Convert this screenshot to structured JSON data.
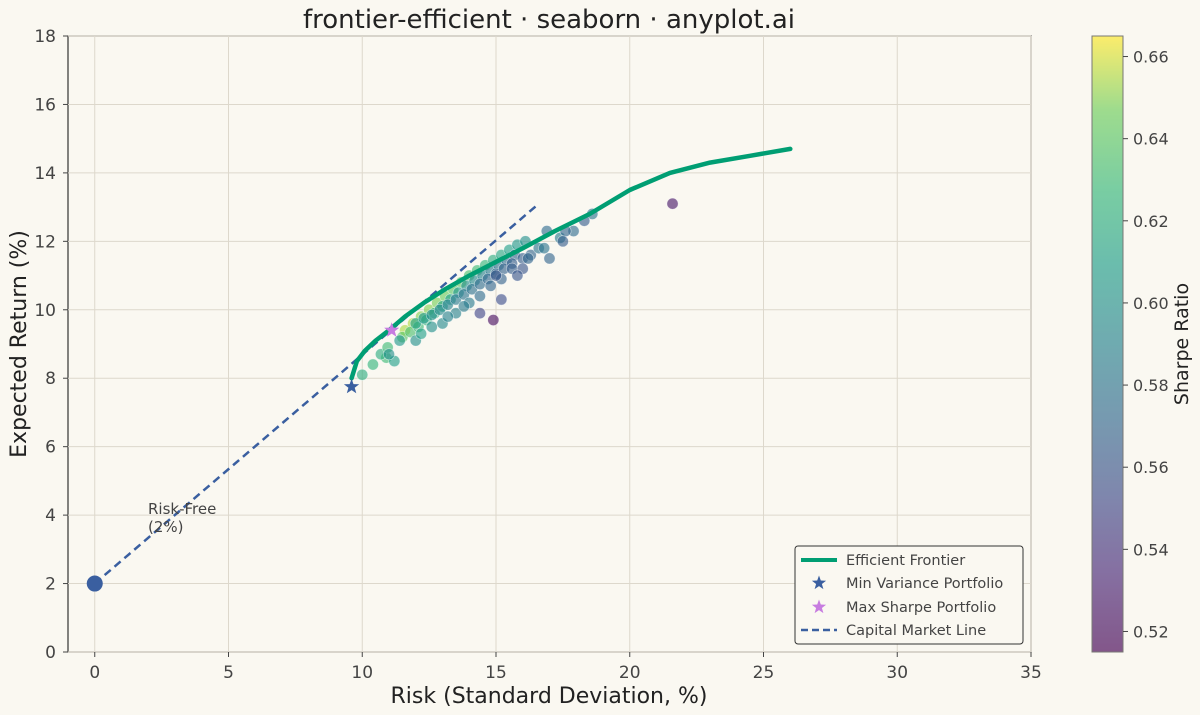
{
  "chart_data": {
    "type": "scatter",
    "title": "frontier-efficient · seaborn · anyplot.ai",
    "xlabel": "Risk (Standard Deviation, %)",
    "ylabel": "Expected Return (%)",
    "xlim": [
      -1,
      35
    ],
    "ylim": [
      0,
      18
    ],
    "x_ticks": [
      0,
      5,
      10,
      15,
      20,
      25,
      30,
      35
    ],
    "y_ticks": [
      0,
      2,
      4,
      6,
      8,
      10,
      12,
      14,
      16,
      18
    ],
    "grid": true,
    "colors": {
      "frontier": "#009E73",
      "cml": "#3A5FA0",
      "min_var": "#3A5FA0",
      "max_sharpe": "#C77CE0",
      "risk_free": "#3A5FA0",
      "background": "#FAF8F1"
    },
    "efficient_frontier": {
      "name": "Efficient Frontier",
      "x": [
        9.6,
        9.8,
        10.1,
        10.5,
        11.0,
        11.6,
        12.3,
        13.1,
        14.0,
        15.0,
        16.0,
        17.2,
        18.5,
        20.0,
        21.5,
        23.0,
        24.5,
        26.0
      ],
      "y": [
        8.0,
        8.5,
        8.8,
        9.1,
        9.4,
        9.8,
        10.2,
        10.6,
        11.0,
        11.4,
        11.8,
        12.3,
        12.8,
        13.5,
        14.0,
        14.3,
        14.5,
        14.7
      ]
    },
    "capital_market_line": {
      "name": "Capital Market Line",
      "x": [
        0,
        16.6
      ],
      "y": [
        2.0,
        13.1
      ]
    },
    "min_variance": {
      "name": "Min Variance Portfolio",
      "x": 9.6,
      "y": 7.75
    },
    "max_sharpe": {
      "name": "Max Sharpe Portfolio",
      "x": 11.1,
      "y": 9.4
    },
    "risk_free": {
      "x": 0,
      "y": 2.0,
      "label_line1": "Risk-Free",
      "label_line2": "(2%)"
    },
    "legend": {
      "position": "lower-right",
      "entries": [
        "Efficient Frontier",
        "Min Variance Portfolio",
        "Max Sharpe Portfolio",
        "Capital Market Line"
      ]
    },
    "colorbar": {
      "label": "Sharpe Ratio",
      "min": 0.515,
      "max": 0.665,
      "ticks": [
        0.52,
        0.54,
        0.56,
        0.58,
        0.6,
        0.62,
        0.64,
        0.66
      ],
      "colormap": "viridis"
    },
    "portfolios": {
      "x": [
        10.0,
        10.4,
        10.9,
        11.2,
        10.7,
        10.95,
        11.6,
        11.9,
        12.2,
        12.5,
        12.8,
        13.1,
        13.4,
        13.7,
        14.0,
        14.3,
        14.6,
        14.9,
        15.2,
        15.5,
        15.8,
        16.1,
        11.5,
        11.8,
        12.1,
        12.4,
        12.7,
        13.0,
        13.3,
        13.6,
        13.9,
        14.2,
        14.5,
        14.8,
        15.1,
        15.4,
        15.7,
        12.0,
        12.3,
        12.6,
        12.9,
        13.2,
        13.5,
        13.8,
        14.1,
        14.4,
        14.7,
        15.0,
        15.3,
        15.6,
        16.0,
        16.3,
        16.6,
        12.0,
        12.6,
        13.0,
        13.5,
        14.0,
        14.4,
        14.8,
        15.2,
        15.6,
        16.2,
        16.8,
        17.4,
        17.9,
        18.6,
        17.6,
        18.3,
        14.4,
        14.9,
        15.0,
        16.0,
        17.0,
        17.5,
        15.2,
        21.6,
        13.2,
        13.8,
        12.2,
        11.0,
        11.4,
        16.9,
        15.8
      ],
      "y": [
        8.1,
        8.4,
        8.6,
        8.5,
        8.7,
        8.9,
        9.4,
        9.6,
        9.8,
        10.0,
        10.2,
        10.4,
        10.6,
        10.8,
        11.0,
        11.15,
        11.3,
        11.45,
        11.6,
        11.75,
        11.9,
        12.0,
        9.2,
        9.35,
        9.5,
        9.7,
        9.9,
        10.1,
        10.3,
        10.5,
        10.7,
        10.85,
        11.0,
        11.15,
        11.3,
        11.45,
        11.6,
        9.6,
        9.75,
        9.85,
        10.0,
        10.15,
        10.3,
        10.45,
        10.6,
        10.75,
        10.9,
        11.05,
        11.2,
        11.35,
        11.5,
        11.6,
        11.8,
        9.1,
        9.5,
        9.6,
        9.9,
        10.2,
        10.4,
        10.7,
        10.9,
        11.2,
        11.5,
        11.8,
        12.1,
        12.3,
        12.8,
        12.3,
        12.6,
        9.9,
        9.7,
        11.0,
        11.2,
        11.5,
        12.0,
        10.3,
        13.1,
        9.8,
        10.1,
        9.3,
        8.7,
        9.1,
        12.3,
        11.0
      ],
      "sharpe": [
        0.62,
        0.625,
        0.63,
        0.61,
        0.62,
        0.63,
        0.655,
        0.655,
        0.65,
        0.65,
        0.648,
        0.645,
        0.64,
        0.64,
        0.635,
        0.63,
        0.625,
        0.62,
        0.615,
        0.61,
        0.605,
        0.6,
        0.64,
        0.635,
        0.63,
        0.625,
        0.62,
        0.615,
        0.61,
        0.605,
        0.6,
        0.595,
        0.59,
        0.585,
        0.58,
        0.575,
        0.57,
        0.61,
        0.605,
        0.6,
        0.595,
        0.59,
        0.585,
        0.58,
        0.578,
        0.575,
        0.572,
        0.57,
        0.568,
        0.565,
        0.565,
        0.57,
        0.58,
        0.6,
        0.6,
        0.595,
        0.59,
        0.585,
        0.575,
        0.57,
        0.568,
        0.565,
        0.57,
        0.58,
        0.585,
        0.575,
        0.58,
        0.57,
        0.565,
        0.55,
        0.52,
        0.56,
        0.56,
        0.57,
        0.565,
        0.555,
        0.525,
        0.59,
        0.585,
        0.61,
        0.6,
        0.605,
        0.575,
        0.56
      ]
    }
  }
}
